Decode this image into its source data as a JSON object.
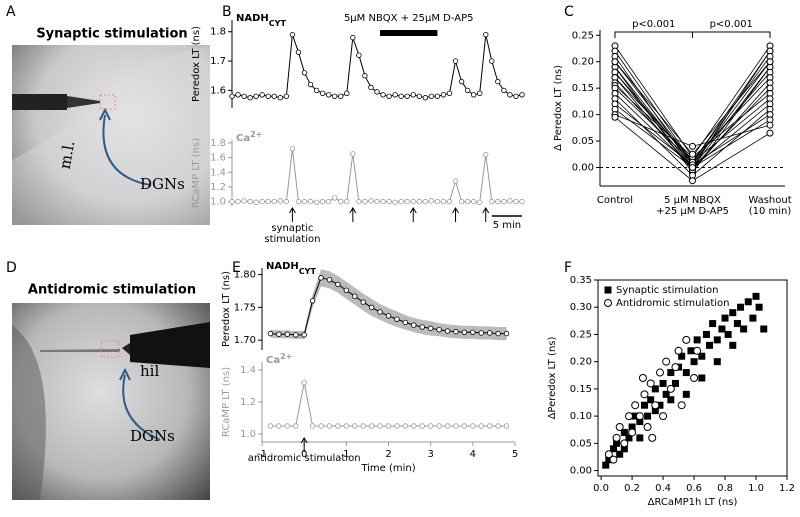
{
  "panels": {
    "letters": [
      "A",
      "B",
      "C",
      "D",
      "E",
      "F"
    ],
    "photo_a": {
      "title": "Synaptic stimulation",
      "labels": [
        "m.l.",
        "DGNs"
      ]
    },
    "photo_d": {
      "title": "Antidromic stimulation",
      "labels": [
        "hil",
        "DGNs"
      ]
    }
  },
  "chart_data": [
    {
      "type": "line",
      "title": "NADH",
      "title_sub": "CYT",
      "ylabel": "Peredox LT (ns)",
      "color": "#000000",
      "axis_color": "#000000",
      "x": [
        0,
        1,
        2,
        3,
        4,
        5,
        6,
        7,
        8,
        9,
        10,
        11,
        12,
        13,
        14,
        15,
        16,
        17,
        18,
        19,
        20,
        21,
        22,
        23,
        24,
        25,
        26,
        27,
        28,
        29,
        30,
        31,
        32,
        33,
        34,
        35,
        36,
        37,
        38,
        39,
        40,
        41,
        42,
        43,
        44,
        45,
        46,
        47,
        48
      ],
      "values": [
        1.58,
        1.585,
        1.58,
        1.575,
        1.58,
        1.585,
        1.58,
        1.58,
        1.575,
        1.58,
        1.79,
        1.73,
        1.66,
        1.62,
        1.6,
        1.59,
        1.585,
        1.58,
        1.58,
        1.59,
        1.78,
        1.72,
        1.65,
        1.61,
        1.595,
        1.585,
        1.58,
        1.585,
        1.58,
        1.58,
        1.585,
        1.58,
        1.575,
        1.58,
        1.58,
        1.585,
        1.59,
        1.7,
        1.63,
        1.6,
        1.585,
        1.59,
        1.79,
        1.7,
        1.63,
        1.6,
        1.585,
        1.58,
        1.585
      ],
      "xlim": [
        0,
        48
      ],
      "ylim": [
        1.54,
        1.84
      ],
      "yticks": [
        1.6,
        1.7,
        1.8
      ],
      "bar_annotation": {
        "label": "5μM NBQX + 25μM D-AP5",
        "x": [
          24.5,
          34
        ]
      }
    },
    {
      "type": "line",
      "title": "Ca",
      "title_sup": "2+",
      "ylabel": "RCaMP LT (ns)",
      "color": "#999999",
      "axis_color": "#999999",
      "x": [
        0,
        1,
        2,
        3,
        4,
        5,
        6,
        7,
        8,
        9,
        10,
        11,
        12,
        13,
        14,
        15,
        16,
        17,
        18,
        19,
        20,
        21,
        22,
        23,
        24,
        25,
        26,
        27,
        28,
        29,
        30,
        31,
        32,
        33,
        34,
        35,
        36,
        37,
        38,
        39,
        40,
        41,
        42,
        43,
        44,
        45,
        46,
        47,
        48
      ],
      "values": [
        1.0,
        1.0,
        1.01,
        1.0,
        0.99,
        1.0,
        1.0,
        1.0,
        1.01,
        1.0,
        1.72,
        1.0,
        1.0,
        1.0,
        0.99,
        1.0,
        1.0,
        1.05,
        1.0,
        1.0,
        1.65,
        1.0,
        1.0,
        1.01,
        1.0,
        1.0,
        1.0,
        0.99,
        1.0,
        1.0,
        1.0,
        1.0,
        1.0,
        1.01,
        1.0,
        1.0,
        1.0,
        1.28,
        1.0,
        1.0,
        1.0,
        0.99,
        1.64,
        1.0,
        1.0,
        1.0,
        1.01,
        1.0,
        1.0
      ],
      "xlim": [
        0,
        48
      ],
      "ylim": [
        0.94,
        1.84
      ],
      "yticks": [
        {
          "value": 1.0,
          "label": "1.0"
        },
        1.2,
        1.4,
        1.6,
        1.8
      ],
      "arrows_x": [
        10,
        20,
        30,
        37,
        42
      ],
      "arrow_label": "synaptic\nstimulation",
      "scale_bar": {
        "value": 5,
        "label": "5 min"
      }
    },
    {
      "type": "line",
      "ylabel": "Δ Peredox LT (ns)",
      "color": "#000000",
      "categories": [
        "Control",
        "5 μM NBQX\n+25 μM D-AP5",
        "Washout\n(10 min)"
      ],
      "values": [
        [
          0.23,
          0.02,
          0.23
        ],
        [
          0.22,
          0.01,
          0.22
        ],
        [
          0.21,
          0.0,
          0.22
        ],
        [
          0.2,
          0.01,
          0.21
        ],
        [
          0.19,
          0.005,
          0.2
        ],
        [
          0.19,
          -0.01,
          0.19
        ],
        [
          0.18,
          0.0,
          0.19
        ],
        [
          0.18,
          0.01,
          0.18
        ],
        [
          0.17,
          0.015,
          0.17
        ],
        [
          0.17,
          -0.005,
          0.16
        ],
        [
          0.16,
          0.0,
          0.15
        ],
        [
          0.155,
          0.02,
          0.14
        ],
        [
          0.15,
          0.01,
          0.13
        ],
        [
          0.14,
          0.0,
          0.12
        ],
        [
          0.13,
          -0.015,
          0.11
        ],
        [
          0.12,
          0.005,
          0.1
        ],
        [
          0.11,
          0.0,
          0.09
        ],
        [
          0.1,
          0.04,
          0.08
        ],
        [
          0.095,
          -0.025,
          0.065
        ],
        [
          0.2,
          0.025,
          0.2
        ]
      ],
      "ylim": [
        -0.035,
        0.26
      ],
      "yticks": [
        {
          "value": 0,
          "label": "0.00"
        },
        {
          "value": 0.05,
          "label": "0.05"
        },
        {
          "value": 0.1,
          "label": "0.10"
        },
        {
          "value": 0.15,
          "label": "0.15"
        },
        {
          "value": 0.2,
          "label": "0.20"
        },
        {
          "value": 0.25,
          "label": "0.25"
        }
      ],
      "hline": 0,
      "annotations": [
        "p<0.001",
        "p<0.001"
      ]
    },
    {
      "type": "line",
      "title": "NADH",
      "title_sub": "CYT",
      "ylabel": "Peredox LT (ns)",
      "color": "#000000",
      "band_color": "#bbbbbb",
      "axis_color": "#000000",
      "x": [
        -0.8,
        -0.6,
        -0.4,
        -0.2,
        0,
        0.2,
        0.4,
        0.6,
        0.8,
        1.0,
        1.2,
        1.4,
        1.6,
        1.8,
        2.0,
        2.2,
        2.4,
        2.6,
        2.8,
        3.0,
        3.2,
        3.4,
        3.6,
        3.8,
        4.0,
        4.2,
        4.4,
        4.6,
        4.8
      ],
      "values": [
        1.71,
        1.709,
        1.709,
        1.708,
        1.708,
        1.76,
        1.795,
        1.792,
        1.785,
        1.776,
        1.767,
        1.758,
        1.75,
        1.743,
        1.737,
        1.732,
        1.727,
        1.723,
        1.72,
        1.718,
        1.716,
        1.714,
        1.713,
        1.712,
        1.712,
        1.711,
        1.711,
        1.71,
        1.71
      ],
      "errors": [
        0.006,
        0.006,
        0.006,
        0.006,
        0.006,
        0.01,
        0.013,
        0.013,
        0.013,
        0.013,
        0.013,
        0.013,
        0.013,
        0.012,
        0.012,
        0.012,
        0.011,
        0.011,
        0.011,
        0.011,
        0.01,
        0.01,
        0.01,
        0.01,
        0.01,
        0.01,
        0.01,
        0.01,
        0.01
      ],
      "xlim": [
        -1,
        5
      ],
      "ylim": [
        1.685,
        1.81
      ],
      "yticks": [
        {
          "value": 1.7,
          "label": "1.70"
        },
        1.75,
        {
          "value": 1.8,
          "label": "1.80"
        }
      ]
    },
    {
      "type": "line",
      "title": "Ca",
      "title_sup": "2+",
      "ylabel": "RCaMP LT (ns)",
      "xlabel": "Time (min)",
      "color": "#999999",
      "axis_color": "#999999",
      "x": [
        -0.8,
        -0.6,
        -0.4,
        -0.2,
        0,
        0.2,
        0.4,
        0.6,
        0.8,
        1.0,
        1.2,
        1.4,
        1.6,
        1.8,
        2.0,
        2.2,
        2.4,
        2.6,
        2.8,
        3.0,
        3.2,
        3.4,
        3.6,
        3.8,
        4.0,
        4.2,
        4.4,
        4.6,
        4.8
      ],
      "values": [
        1.05,
        1.05,
        1.05,
        1.05,
        1.32,
        1.05,
        1.05,
        1.05,
        1.05,
        1.05,
        1.05,
        1.05,
        1.05,
        1.05,
        1.05,
        1.05,
        1.05,
        1.05,
        1.05,
        1.05,
        1.05,
        1.05,
        1.05,
        1.05,
        1.05,
        1.05,
        1.05,
        1.05,
        1.05
      ],
      "xlim": [
        -1,
        5
      ],
      "ylim": [
        0.95,
        1.45
      ],
      "xticks": [
        -1,
        0,
        1,
        2,
        3,
        4,
        5
      ],
      "yticks": [
        {
          "value": 1.0,
          "label": "1.0"
        },
        1.2,
        1.4
      ],
      "arrows_x": [
        0
      ],
      "arrow_label": "antidromic stimulation"
    },
    {
      "type": "scatter",
      "xlabel": "ΔRCaMP1h LT (ns)",
      "ylabel": "ΔPeredox LT (ns)",
      "legend": "top-left",
      "xlim": [
        -0.02,
        1.2
      ],
      "ylim": [
        -0.01,
        0.35
      ],
      "xticks": [
        {
          "value": 0,
          "label": "0.0"
        },
        0.2,
        0.4,
        0.6,
        0.8,
        {
          "value": 1,
          "label": "1.0"
        },
        1.2
      ],
      "yticks": [
        {
          "value": 0,
          "label": "0.00"
        },
        {
          "value": 0.05,
          "label": "0.05"
        },
        {
          "value": 0.1,
          "label": "0.10"
        },
        {
          "value": 0.15,
          "label": "0.15"
        },
        {
          "value": 0.2,
          "label": "0.20"
        },
        {
          "value": 0.25,
          "label": "0.25"
        },
        {
          "value": 0.3,
          "label": "0.30"
        },
        {
          "value": 0.35,
          "label": "0.35"
        }
      ],
      "series": [
        {
          "name": "Synaptic stimulation",
          "color": "#000000",
          "marker": "square",
          "x": [
            0.05,
            0.08,
            0.1,
            0.12,
            0.15,
            0.18,
            0.2,
            0.22,
            0.25,
            0.28,
            0.3,
            0.32,
            0.35,
            0.38,
            0.4,
            0.42,
            0.45,
            0.48,
            0.5,
            0.52,
            0.55,
            0.58,
            0.6,
            0.62,
            0.65,
            0.68,
            0.7,
            0.72,
            0.75,
            0.78,
            0.8,
            0.82,
            0.85,
            0.88,
            0.9,
            0.92,
            0.95,
            0.98,
            1.0,
            1.02,
            1.05,
            0.55,
            0.45,
            0.65,
            0.35,
            0.75,
            0.25,
            0.85,
            0.15,
            0.03
          ],
          "values": [
            0.02,
            0.04,
            0.05,
            0.03,
            0.07,
            0.06,
            0.08,
            0.1,
            0.09,
            0.12,
            0.1,
            0.13,
            0.15,
            0.12,
            0.16,
            0.14,
            0.18,
            0.16,
            0.19,
            0.21,
            0.18,
            0.22,
            0.2,
            0.24,
            0.21,
            0.25,
            0.23,
            0.27,
            0.24,
            0.26,
            0.28,
            0.25,
            0.29,
            0.27,
            0.3,
            0.26,
            0.31,
            0.28,
            0.32,
            0.3,
            0.26,
            0.14,
            0.13,
            0.17,
            0.11,
            0.2,
            0.06,
            0.23,
            0.04,
            0.01
          ]
        },
        {
          "name": "Antidromic stimulation",
          "color": "#000000",
          "marker": "circle",
          "x": [
            0.05,
            0.1,
            0.12,
            0.15,
            0.18,
            0.2,
            0.22,
            0.25,
            0.28,
            0.3,
            0.32,
            0.35,
            0.38,
            0.4,
            0.42,
            0.45,
            0.5,
            0.52,
            0.55,
            0.6,
            0.08,
            0.33,
            0.27,
            0.48,
            0.62
          ],
          "values": [
            0.03,
            0.06,
            0.08,
            0.05,
            0.1,
            0.07,
            0.12,
            0.1,
            0.14,
            0.08,
            0.16,
            0.12,
            0.18,
            0.1,
            0.2,
            0.15,
            0.22,
            0.12,
            0.24,
            0.17,
            0.02,
            0.06,
            0.17,
            0.19,
            0.22
          ]
        }
      ]
    }
  ]
}
